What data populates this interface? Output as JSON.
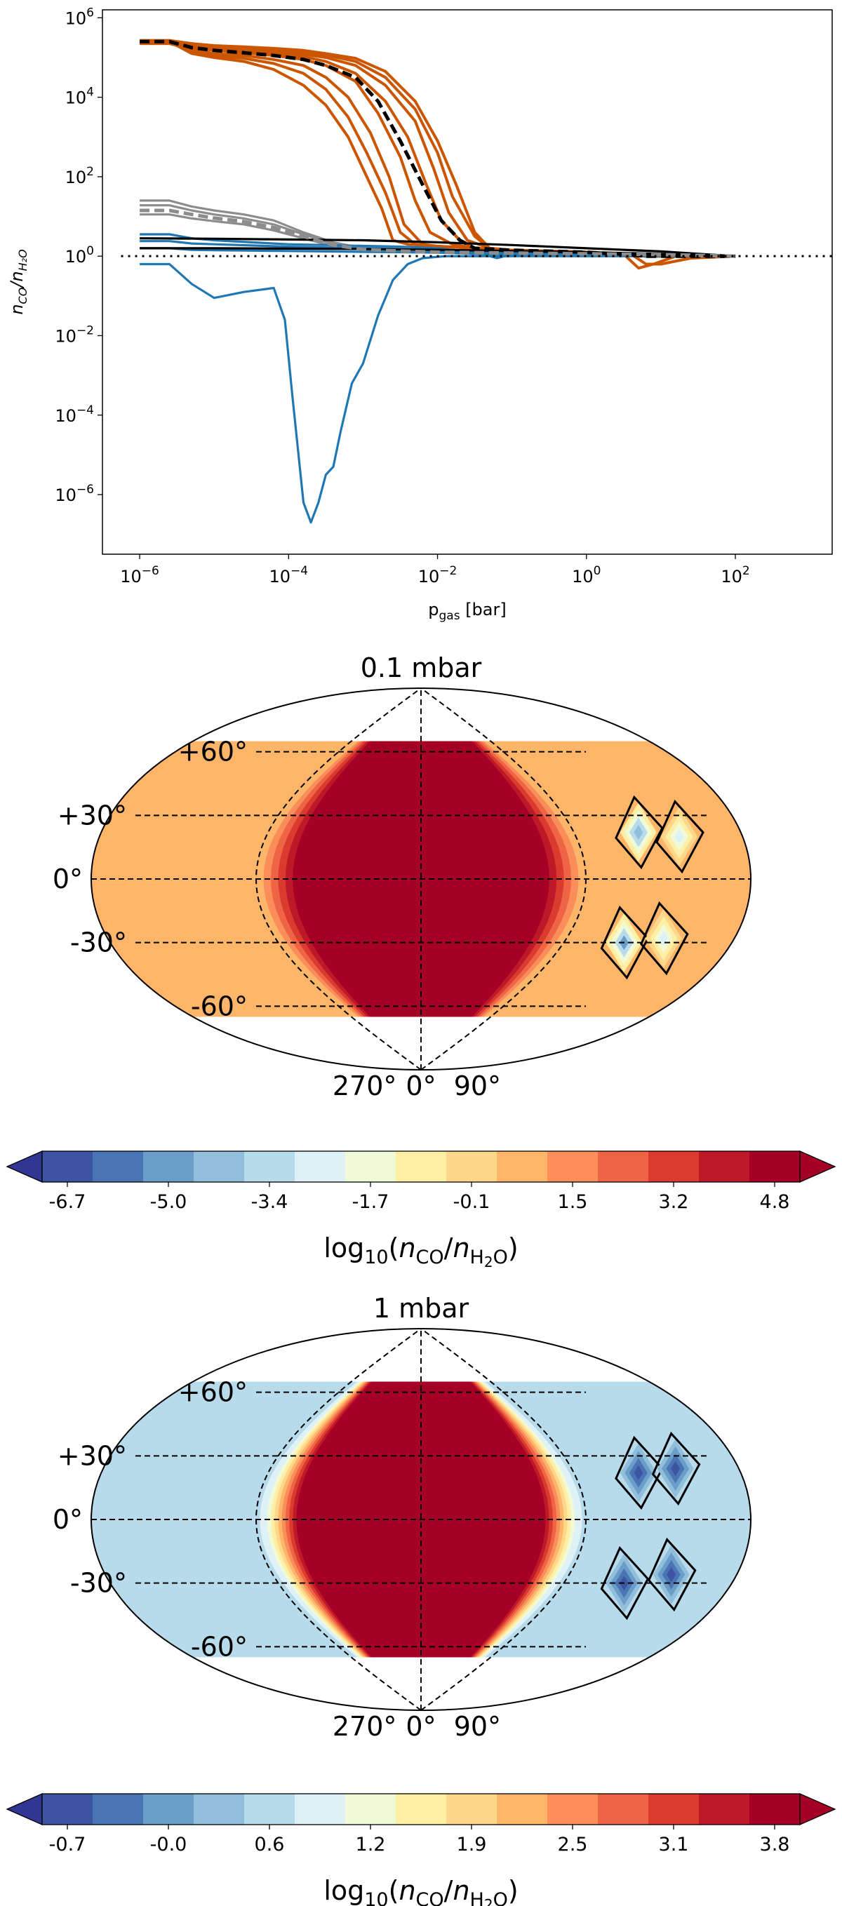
{
  "chart_data": [
    {
      "type": "line",
      "title": "",
      "xlabel": "p_gas [bar]",
      "ylabel": "n_CO/n_H2O",
      "xscale": "log",
      "yscale": "log",
      "xlim_log10": [
        -6.5,
        3.3
      ],
      "ylim_log10": [
        -7.5,
        6.2
      ],
      "xticks": [
        "10^-6",
        "10^-4",
        "10^-2",
        "10^0",
        "10^2"
      ],
      "xtick_exponents": [
        -6,
        -4,
        -2,
        0,
        2
      ],
      "yticks": [
        "10^6",
        "10^4",
        "10^2",
        "10^0",
        "10^-2",
        "10^-4",
        "10^-6"
      ],
      "ytick_exponents": [
        6,
        4,
        2,
        0,
        -2,
        -4,
        -6
      ],
      "reference_line": {
        "y": 1,
        "style": "dotted",
        "color": "#000000"
      },
      "series_colors": {
        "orange": "#cc5500",
        "grey": "#8c8c8c",
        "blue": "#1f77b4",
        "black": "#000000"
      },
      "series": [
        {
          "name": "orange-1",
          "color": "orange",
          "style": "solid",
          "log10_p": [
            -6,
            -5.6,
            -5.3,
            -5,
            -4.6,
            -4.2,
            -3.8,
            -3.5,
            -3.2,
            -2.95,
            -2.75,
            -2.6,
            -2.4,
            -2,
            -1.5,
            -1,
            0,
            0.5,
            0.8,
            1.2,
            1.6,
            2
          ],
          "log10_y": [
            5.4,
            5.4,
            5.1,
            5.0,
            4.9,
            4.7,
            4.3,
            3.8,
            3.0,
            2.0,
            1.2,
            0.4,
            0.3,
            0.25,
            0.2,
            0.15,
            0.1,
            0.05,
            0,
            0,
            0,
            0
          ]
        },
        {
          "name": "orange-2",
          "color": "orange",
          "style": "solid",
          "log10_p": [
            -6,
            -5.6,
            -5.3,
            -5,
            -4.6,
            -4.2,
            -3.8,
            -3.5,
            -3.2,
            -2.95,
            -2.7,
            -2.5,
            -2.3,
            -2,
            -1.5,
            -1,
            0,
            0.5,
            0.8,
            1.2,
            1.6,
            2
          ],
          "log10_y": [
            5.38,
            5.38,
            5.15,
            5.05,
            4.98,
            4.85,
            4.6,
            4.2,
            3.5,
            2.6,
            1.6,
            0.6,
            0.3,
            0.25,
            0.2,
            0.15,
            0.1,
            0.05,
            0,
            0,
            0,
            0
          ]
        },
        {
          "name": "orange-3",
          "color": "orange",
          "style": "solid",
          "log10_p": [
            -6,
            -5.6,
            -5.3,
            -5,
            -4.6,
            -4.2,
            -3.8,
            -3.5,
            -3.2,
            -2.9,
            -2.65,
            -2.45,
            -2.2,
            -2,
            -1.5,
            -1,
            0,
            0.5,
            0.8,
            1.2,
            1.6,
            2
          ],
          "log10_y": [
            5.35,
            5.35,
            5.2,
            5.1,
            5.05,
            4.95,
            4.8,
            4.5,
            4.0,
            3.1,
            2.0,
            0.8,
            0.3,
            0.25,
            0.2,
            0.15,
            0.1,
            0.05,
            0,
            0,
            0,
            0
          ]
        },
        {
          "name": "orange-4",
          "color": "orange",
          "style": "solid",
          "log10_p": [
            -6,
            -5.6,
            -5.3,
            -5,
            -4.6,
            -4.2,
            -3.8,
            -3.5,
            -3.1,
            -2.8,
            -2.5,
            -2.3,
            -2.1,
            -1.8,
            -1.5,
            -1,
            0,
            0.5,
            0.8,
            1.2,
            1.6,
            2
          ],
          "log10_y": [
            5.42,
            5.42,
            5.25,
            5.18,
            5.12,
            5.05,
            4.95,
            4.8,
            4.4,
            3.6,
            2.5,
            1.4,
            0.6,
            0.3,
            0.2,
            0.15,
            0.1,
            0.05,
            0,
            0,
            0,
            0
          ]
        },
        {
          "name": "orange-5",
          "color": "orange",
          "style": "solid",
          "log10_p": [
            -6,
            -5.6,
            -5.3,
            -5,
            -4.6,
            -4.2,
            -3.8,
            -3.5,
            -3.1,
            -2.7,
            -2.4,
            -2.15,
            -1.95,
            -1.7,
            -1.5,
            -1,
            0,
            0.5,
            0.8,
            1.2,
            1.6,
            2
          ],
          "log10_y": [
            5.4,
            5.4,
            5.28,
            5.2,
            5.16,
            5.1,
            5.02,
            4.9,
            4.6,
            3.9,
            3.0,
            1.8,
            0.9,
            0.4,
            0.2,
            0.15,
            0.1,
            0.05,
            0,
            0,
            0,
            0
          ]
        },
        {
          "name": "orange-6",
          "color": "orange",
          "style": "solid",
          "log10_p": [
            -6,
            -5.6,
            -5.3,
            -5,
            -4.6,
            -4.2,
            -3.8,
            -3.5,
            -3.1,
            -2.7,
            -2.3,
            -2.05,
            -1.85,
            -1.6,
            -1.3,
            -1,
            -0.5,
            0.6,
            0.8,
            1.0,
            1.4,
            2
          ],
          "log10_y": [
            5.4,
            5.4,
            5.3,
            5.25,
            5.2,
            5.15,
            5.08,
            5.0,
            4.8,
            4.3,
            3.4,
            2.2,
            1.1,
            0.4,
            0.2,
            0.15,
            0.1,
            0.05,
            -0.2,
            -0.2,
            -0.05,
            0
          ]
        },
        {
          "name": "orange-7",
          "color": "orange",
          "style": "solid",
          "log10_p": [
            -6,
            -5.6,
            -5.3,
            -5,
            -4.6,
            -4.2,
            -3.8,
            -3.5,
            -3.1,
            -2.7,
            -2.3,
            -2.0,
            -1.8,
            -1.5,
            -1.3,
            -1,
            0,
            0.5,
            0.7,
            0.9,
            1.2,
            2
          ],
          "log10_y": [
            5.41,
            5.41,
            5.32,
            5.28,
            5.24,
            5.2,
            5.14,
            5.06,
            4.9,
            4.5,
            3.7,
            2.6,
            1.5,
            0.5,
            0.2,
            0.15,
            0.1,
            0.05,
            -0.3,
            -0.2,
            0,
            0
          ]
        },
        {
          "name": "orange-8",
          "color": "orange",
          "style": "solid",
          "log10_p": [
            -6,
            -5.6,
            -5.3,
            -5,
            -4.6,
            -4.2,
            -3.8,
            -3.5,
            -3.1,
            -2.7,
            -2.3,
            -2.0,
            -1.75,
            -1.5,
            -1.3,
            -1,
            0,
            0.5,
            0.8,
            1.2,
            1.6,
            2
          ],
          "log10_y": [
            5.43,
            5.43,
            5.35,
            5.3,
            5.27,
            5.23,
            5.18,
            5.1,
            4.98,
            4.65,
            3.9,
            2.9,
            1.8,
            0.6,
            0.2,
            0.15,
            0.1,
            0.05,
            0,
            0,
            0,
            0
          ]
        },
        {
          "name": "median",
          "color": "black",
          "style": "dashed",
          "log10_p": [
            -6,
            -5.6,
            -5.3,
            -5,
            -4.6,
            -4.2,
            -3.8,
            -3.5,
            -3.1,
            -2.8,
            -2.5,
            -2.2,
            -1.95,
            -1.7,
            -1.5,
            -1,
            0,
            0.5,
            0.8,
            1.2,
            1.6,
            2
          ],
          "log10_y": [
            5.4,
            5.4,
            5.25,
            5.18,
            5.12,
            5.05,
            4.95,
            4.8,
            4.5,
            3.9,
            2.9,
            1.8,
            0.9,
            0.4,
            0.2,
            0.15,
            0.1,
            0.05,
            0,
            0,
            0,
            0
          ]
        },
        {
          "name": "grey-1",
          "color": "grey",
          "style": "solid",
          "log10_p": [
            -6,
            -5.6,
            -5.3,
            -5,
            -4.6,
            -4.2,
            -3.8,
            -3.4,
            -3,
            -2.5,
            -2,
            -1,
            0,
            1,
            2
          ],
          "log10_y": [
            1.4,
            1.4,
            1.25,
            1.15,
            1.05,
            0.9,
            0.6,
            0.35,
            0.2,
            0.15,
            0.1,
            0.08,
            0.06,
            0.04,
            0
          ]
        },
        {
          "name": "grey-2",
          "color": "grey",
          "style": "solid",
          "log10_p": [
            -6,
            -5.6,
            -5.3,
            -5,
            -4.6,
            -4.2,
            -3.8,
            -3.4,
            -3,
            -2.5,
            -2,
            -1,
            0,
            1,
            2
          ],
          "log10_y": [
            1.28,
            1.28,
            1.15,
            1.05,
            0.95,
            0.8,
            0.55,
            0.3,
            0.18,
            0.14,
            0.1,
            0.08,
            0.06,
            0.04,
            0
          ]
        },
        {
          "name": "grey-3",
          "color": "grey",
          "style": "solid",
          "log10_p": [
            -6,
            -5.6,
            -5.3,
            -5,
            -4.6,
            -4.2,
            -3.8,
            -3.4,
            -3,
            -2.5,
            -2,
            -1,
            0,
            1,
            2
          ],
          "log10_y": [
            1.05,
            1.05,
            0.95,
            0.88,
            0.8,
            0.65,
            0.45,
            0.25,
            0.16,
            0.12,
            0.1,
            0.08,
            0.06,
            0.04,
            0
          ]
        },
        {
          "name": "grey-median",
          "color": "grey",
          "style": "dashed",
          "log10_p": [
            -6,
            -5.6,
            -5.3,
            -5,
            -4.6,
            -4.2,
            -3.8,
            -3.4,
            -3,
            -2.5,
            -2,
            -1,
            0,
            1,
            2
          ],
          "log10_y": [
            1.15,
            1.15,
            1.05,
            0.96,
            0.87,
            0.72,
            0.5,
            0.28,
            0.17,
            0.13,
            0.1,
            0.08,
            0.06,
            0.04,
            0
          ]
        },
        {
          "name": "black-1",
          "color": "black",
          "style": "solid",
          "log10_p": [
            -6,
            -5,
            -4,
            -3,
            -2,
            -1,
            0,
            1,
            2
          ],
          "log10_y": [
            0.45,
            0.44,
            0.42,
            0.4,
            0.35,
            0.28,
            0.2,
            0.12,
            0
          ]
        },
        {
          "name": "black-2",
          "color": "black",
          "style": "solid",
          "log10_p": [
            -6,
            -5,
            -4,
            -3,
            -2,
            -1,
            0,
            1,
            2
          ],
          "log10_y": [
            0.2,
            0.2,
            0.19,
            0.18,
            0.16,
            0.13,
            0.1,
            0.06,
            0
          ]
        },
        {
          "name": "blue-1",
          "color": "blue",
          "style": "solid",
          "log10_p": [
            -6,
            -5.6,
            -5.3,
            -5,
            -4.6,
            -4.2,
            -4.05,
            -3.95,
            -3.85,
            -3.8,
            -3.7,
            -3.6,
            -3.5,
            -3.4,
            -3.3,
            -3.15,
            -3.0,
            -2.8,
            -2.6,
            -2.4,
            -2.2,
            -1.9,
            -1.6,
            -1.3,
            -1,
            0,
            1,
            2
          ],
          "log10_y": [
            -0.2,
            -0.2,
            -0.7,
            -1.05,
            -0.9,
            -0.8,
            -1.6,
            -3.5,
            -5.3,
            -6.2,
            -6.7,
            -6.2,
            -5.5,
            -5.3,
            -4.4,
            -3.2,
            -2.7,
            -1.5,
            -0.6,
            -0.2,
            -0.05,
            0,
            0,
            0,
            0,
            0,
            0,
            0
          ]
        },
        {
          "name": "blue-2",
          "color": "blue",
          "style": "solid",
          "log10_p": [
            -6,
            -5.6,
            -5.3,
            -5,
            -4.5,
            -4,
            -3.5,
            -3,
            -2.5,
            -2,
            -1.5,
            -1.2,
            -1,
            0,
            1,
            2
          ],
          "log10_y": [
            0.55,
            0.55,
            0.45,
            0.4,
            0.35,
            0.3,
            0.28,
            0.26,
            0.24,
            0.2,
            0.1,
            -0.05,
            0.05,
            0.05,
            0.03,
            0
          ]
        },
        {
          "name": "blue-3",
          "color": "blue",
          "style": "solid",
          "log10_p": [
            -6,
            -5.6,
            -5.3,
            -5,
            -4.5,
            -4,
            -3.5,
            -3,
            -2.5,
            -2,
            -1.5,
            -1,
            0,
            1,
            2
          ],
          "log10_y": [
            0.38,
            0.38,
            0.32,
            0.3,
            0.27,
            0.24,
            0.22,
            0.2,
            0.18,
            0.15,
            0.1,
            0.08,
            0.05,
            0.03,
            0
          ]
        },
        {
          "name": "blue-4",
          "color": "blue",
          "style": "solid",
          "log10_p": [
            -6,
            -5.6,
            -5.3,
            -5,
            -4.5,
            -4,
            -3.5,
            -3,
            -2.5,
            -2,
            -1.5,
            -1,
            0,
            1,
            2
          ],
          "log10_y": [
            0.2,
            0.2,
            0.16,
            0.15,
            0.14,
            0.13,
            0.12,
            0.11,
            0.1,
            0.09,
            0.06,
            0.05,
            0.04,
            0.02,
            0
          ]
        }
      ]
    },
    {
      "type": "heatmap",
      "projection": "robinson-like",
      "title": "0.1 mbar",
      "lat_labels": [
        "+60°",
        "+30°",
        "0°",
        "-30°",
        "-60°"
      ],
      "lat_values": [
        60,
        30,
        0,
        -30,
        -60
      ],
      "lon_labels": [
        "270°",
        "0°",
        "90°"
      ],
      "lon_values": [
        -90,
        0,
        90
      ],
      "data_lat_extent": [
        -65,
        65
      ],
      "fields": {
        "background": 0.5,
        "dayside_max": 4.8,
        "night_spots": [
          {
            "lon": 128,
            "lat": 22,
            "value": -4.2,
            "contour": true
          },
          {
            "lon": 128,
            "lat": -30,
            "value": -4.6,
            "contour": true
          },
          {
            "lon": 150,
            "lat": 20,
            "value": -2.8,
            "contour": true
          },
          {
            "lon": 150,
            "lat": -28,
            "value": -2.8,
            "contour": true
          }
        ]
      },
      "colorbar": {
        "label": "log10(n_CO/n_H2O)",
        "ticks": [
          "-6.7",
          "-5.0",
          "-3.4",
          "-1.7",
          "-0.1",
          "1.5",
          "3.2",
          "4.8"
        ],
        "min": -6.7,
        "max": 4.8,
        "levels": 15
      }
    },
    {
      "type": "heatmap",
      "projection": "robinson-like",
      "title": "1 mbar",
      "lat_labels": [
        "+60°",
        "+30°",
        "0°",
        "-30°",
        "-60°"
      ],
      "lat_values": [
        60,
        30,
        0,
        -30,
        -60
      ],
      "lon_labels": [
        "270°",
        "0°",
        "90°"
      ],
      "lon_values": [
        -90,
        0,
        90
      ],
      "data_lat_extent": [
        -65,
        65
      ],
      "fields": {
        "background": 0.55,
        "dayside_max": 3.8,
        "night_spots": [
          {
            "lon": 128,
            "lat": 22,
            "value": -0.6,
            "contour": true
          },
          {
            "lon": 128,
            "lat": -30,
            "value": -0.6,
            "contour": true
          },
          {
            "lon": 152,
            "lat": 24,
            "value": -0.4,
            "contour": true
          },
          {
            "lon": 152,
            "lat": -26,
            "value": -0.4,
            "contour": true
          }
        ]
      },
      "colorbar": {
        "label": "log10(n_CO/n_H2O)",
        "ticks": [
          "-0.7",
          "-0.0",
          "0.6",
          "1.2",
          "1.9",
          "2.5",
          "3.1",
          "3.8"
        ],
        "min": -0.7,
        "max": 3.8,
        "levels": 15
      }
    }
  ],
  "colormap": [
    "#313695",
    "#3d54a3",
    "#4a74b4",
    "#6a9ec9",
    "#91bfdb",
    "#b7dbea",
    "#def1f7",
    "#f1fad7",
    "#ffefa4",
    "#fed78b",
    "#fdb56a",
    "#fa8d59",
    "#ef6445",
    "#db3a2f",
    "#be1929",
    "#a50026"
  ],
  "text": {
    "xlabel_base": "p",
    "xlabel_sub": "gas",
    "xlabel_unit": " [bar]",
    "ylabel_n1": "n",
    "ylabel_sub1": "CO",
    "ylabel_slash": "/",
    "ylabel_n2": "n",
    "ylabel_sub2": "H₂O",
    "cb_label_log": "log",
    "cb_label_ten": "10",
    "cb_label_open": "(",
    "cb_label_n1": "n",
    "cb_label_sub1": "CO",
    "cb_label_slash": "/",
    "cb_label_n2": "n",
    "cb_label_sub2": "H",
    "cb_label_subsub": "2",
    "cb_label_sub3": "O",
    "cb_label_close": ")"
  }
}
